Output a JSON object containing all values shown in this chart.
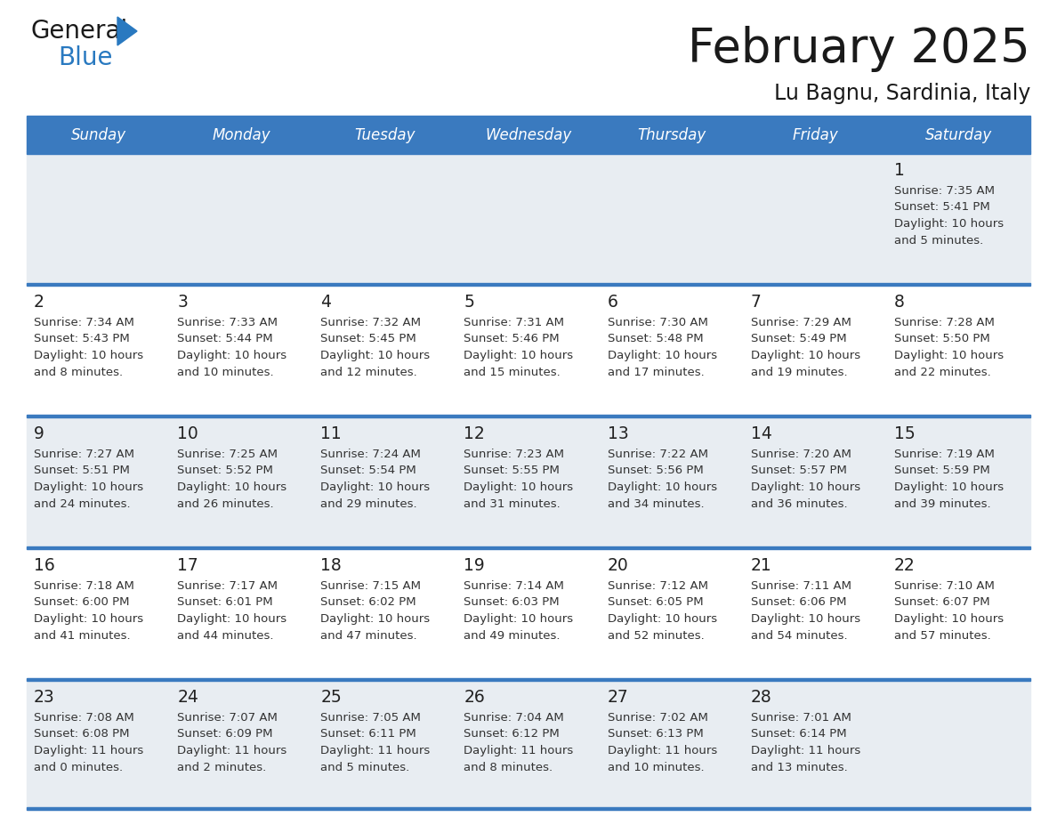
{
  "title": "February 2025",
  "subtitle": "Lu Bagnu, Sardinia, Italy",
  "header_bg": "#3a7abf",
  "header_text": "#ffffff",
  "separator_color": "#3a7abf",
  "row_bg_light": "#e8edf2",
  "row_bg_white": "#ffffff",
  "day_headers": [
    "Sunday",
    "Monday",
    "Tuesday",
    "Wednesday",
    "Thursday",
    "Friday",
    "Saturday"
  ],
  "cell_text_color": "#444444",
  "day_number_color": "#333333",
  "calendar": [
    [
      null,
      null,
      null,
      null,
      null,
      null,
      {
        "day": "1",
        "sunrise": "Sunrise: 7:35 AM",
        "sunset": "Sunset: 5:41 PM",
        "daylight": "Daylight: 10 hours",
        "daylight2": "and 5 minutes."
      }
    ],
    [
      {
        "day": "2",
        "sunrise": "Sunrise: 7:34 AM",
        "sunset": "Sunset: 5:43 PM",
        "daylight": "Daylight: 10 hours",
        "daylight2": "and 8 minutes."
      },
      {
        "day": "3",
        "sunrise": "Sunrise: 7:33 AM",
        "sunset": "Sunset: 5:44 PM",
        "daylight": "Daylight: 10 hours",
        "daylight2": "and 10 minutes."
      },
      {
        "day": "4",
        "sunrise": "Sunrise: 7:32 AM",
        "sunset": "Sunset: 5:45 PM",
        "daylight": "Daylight: 10 hours",
        "daylight2": "and 12 minutes."
      },
      {
        "day": "5",
        "sunrise": "Sunrise: 7:31 AM",
        "sunset": "Sunset: 5:46 PM",
        "daylight": "Daylight: 10 hours",
        "daylight2": "and 15 minutes."
      },
      {
        "day": "6",
        "sunrise": "Sunrise: 7:30 AM",
        "sunset": "Sunset: 5:48 PM",
        "daylight": "Daylight: 10 hours",
        "daylight2": "and 17 minutes."
      },
      {
        "day": "7",
        "sunrise": "Sunrise: 7:29 AM",
        "sunset": "Sunset: 5:49 PM",
        "daylight": "Daylight: 10 hours",
        "daylight2": "and 19 minutes."
      },
      {
        "day": "8",
        "sunrise": "Sunrise: 7:28 AM",
        "sunset": "Sunset: 5:50 PM",
        "daylight": "Daylight: 10 hours",
        "daylight2": "and 22 minutes."
      }
    ],
    [
      {
        "day": "9",
        "sunrise": "Sunrise: 7:27 AM",
        "sunset": "Sunset: 5:51 PM",
        "daylight": "Daylight: 10 hours",
        "daylight2": "and 24 minutes."
      },
      {
        "day": "10",
        "sunrise": "Sunrise: 7:25 AM",
        "sunset": "Sunset: 5:52 PM",
        "daylight": "Daylight: 10 hours",
        "daylight2": "and 26 minutes."
      },
      {
        "day": "11",
        "sunrise": "Sunrise: 7:24 AM",
        "sunset": "Sunset: 5:54 PM",
        "daylight": "Daylight: 10 hours",
        "daylight2": "and 29 minutes."
      },
      {
        "day": "12",
        "sunrise": "Sunrise: 7:23 AM",
        "sunset": "Sunset: 5:55 PM",
        "daylight": "Daylight: 10 hours",
        "daylight2": "and 31 minutes."
      },
      {
        "day": "13",
        "sunrise": "Sunrise: 7:22 AM",
        "sunset": "Sunset: 5:56 PM",
        "daylight": "Daylight: 10 hours",
        "daylight2": "and 34 minutes."
      },
      {
        "day": "14",
        "sunrise": "Sunrise: 7:20 AM",
        "sunset": "Sunset: 5:57 PM",
        "daylight": "Daylight: 10 hours",
        "daylight2": "and 36 minutes."
      },
      {
        "day": "15",
        "sunrise": "Sunrise: 7:19 AM",
        "sunset": "Sunset: 5:59 PM",
        "daylight": "Daylight: 10 hours",
        "daylight2": "and 39 minutes."
      }
    ],
    [
      {
        "day": "16",
        "sunrise": "Sunrise: 7:18 AM",
        "sunset": "Sunset: 6:00 PM",
        "daylight": "Daylight: 10 hours",
        "daylight2": "and 41 minutes."
      },
      {
        "day": "17",
        "sunrise": "Sunrise: 7:17 AM",
        "sunset": "Sunset: 6:01 PM",
        "daylight": "Daylight: 10 hours",
        "daylight2": "and 44 minutes."
      },
      {
        "day": "18",
        "sunrise": "Sunrise: 7:15 AM",
        "sunset": "Sunset: 6:02 PM",
        "daylight": "Daylight: 10 hours",
        "daylight2": "and 47 minutes."
      },
      {
        "day": "19",
        "sunrise": "Sunrise: 7:14 AM",
        "sunset": "Sunset: 6:03 PM",
        "daylight": "Daylight: 10 hours",
        "daylight2": "and 49 minutes."
      },
      {
        "day": "20",
        "sunrise": "Sunrise: 7:12 AM",
        "sunset": "Sunset: 6:05 PM",
        "daylight": "Daylight: 10 hours",
        "daylight2": "and 52 minutes."
      },
      {
        "day": "21",
        "sunrise": "Sunrise: 7:11 AM",
        "sunset": "Sunset: 6:06 PM",
        "daylight": "Daylight: 10 hours",
        "daylight2": "and 54 minutes."
      },
      {
        "day": "22",
        "sunrise": "Sunrise: 7:10 AM",
        "sunset": "Sunset: 6:07 PM",
        "daylight": "Daylight: 10 hours",
        "daylight2": "and 57 minutes."
      }
    ],
    [
      {
        "day": "23",
        "sunrise": "Sunrise: 7:08 AM",
        "sunset": "Sunset: 6:08 PM",
        "daylight": "Daylight: 11 hours",
        "daylight2": "and 0 minutes."
      },
      {
        "day": "24",
        "sunrise": "Sunrise: 7:07 AM",
        "sunset": "Sunset: 6:09 PM",
        "daylight": "Daylight: 11 hours",
        "daylight2": "and 2 minutes."
      },
      {
        "day": "25",
        "sunrise": "Sunrise: 7:05 AM",
        "sunset": "Sunset: 6:11 PM",
        "daylight": "Daylight: 11 hours",
        "daylight2": "and 5 minutes."
      },
      {
        "day": "26",
        "sunrise": "Sunrise: 7:04 AM",
        "sunset": "Sunset: 6:12 PM",
        "daylight": "Daylight: 11 hours",
        "daylight2": "and 8 minutes."
      },
      {
        "day": "27",
        "sunrise": "Sunrise: 7:02 AM",
        "sunset": "Sunset: 6:13 PM",
        "daylight": "Daylight: 11 hours",
        "daylight2": "and 10 minutes."
      },
      {
        "day": "28",
        "sunrise": "Sunrise: 7:01 AM",
        "sunset": "Sunset: 6:14 PM",
        "daylight": "Daylight: 11 hours",
        "daylight2": "and 13 minutes."
      },
      null
    ]
  ]
}
